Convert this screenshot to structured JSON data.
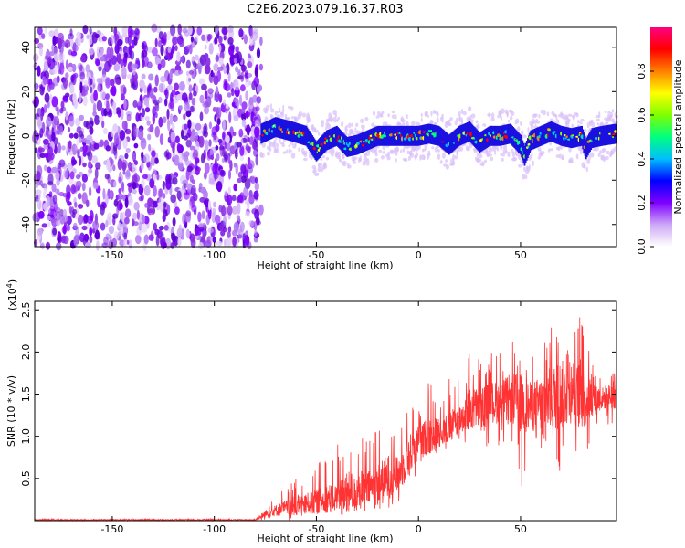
{
  "figure": {
    "title": "C2E6.2023.079.16.37.R03"
  },
  "chart_data": [
    {
      "type": "heatmap",
      "title": "",
      "xlabel": "Height of straight line (km)",
      "ylabel": "Frequency (Hz)",
      "xlim": [
        -188,
        97
      ],
      "ylim": [
        -50,
        49
      ],
      "x_ticks": [
        -150,
        -100,
        -50,
        0,
        50
      ],
      "y_ticks": [
        -40,
        -20,
        0,
        20,
        40
      ],
      "grid": false,
      "noise_region_x": [
        -188,
        -77
      ],
      "signal_centerline": {
        "x": [
          -77,
          -70,
          -62,
          -55,
          -50,
          -45,
          -40,
          -35,
          -30,
          -25,
          -20,
          -15,
          -10,
          -5,
          0,
          5,
          10,
          15,
          20,
          25,
          30,
          35,
          40,
          45,
          50,
          52,
          55,
          60,
          65,
          70,
          75,
          80,
          82,
          85,
          90,
          97
        ],
        "y": [
          1,
          4,
          2,
          0,
          -7,
          -2,
          0,
          -5,
          -4,
          -2,
          0,
          0,
          0,
          0,
          0,
          1,
          0,
          -4,
          0,
          2,
          -3,
          0,
          0,
          1,
          -4,
          -9,
          -2,
          0,
          2,
          0,
          -1,
          0,
          -6,
          -1,
          0,
          1
        ]
      },
      "colorbar": {
        "label": "Normalized spectral amplitude",
        "range": [
          0,
          1
        ],
        "ticks": [
          0.0,
          0.2,
          0.4,
          0.6,
          0.8
        ],
        "colors": [
          "#ffffff",
          "#cda8f7",
          "#7f00ff",
          "#0000ff",
          "#00bfff",
          "#00ff80",
          "#7fff00",
          "#ffff00",
          "#ff8000",
          "#ff0000",
          "#ff0080"
        ]
      }
    },
    {
      "type": "line",
      "title": "",
      "xlabel": "Height of straight line (km)",
      "ylabel": "SNR (10 * v/v)",
      "y_multiplier": "(x10",
      "y_multiplier_exp": "4",
      "y_multiplier_close": ")",
      "xlim": [
        -188,
        97
      ],
      "ylim": [
        0,
        2.6
      ],
      "x_ticks": [
        -150,
        -100,
        -50,
        0,
        50
      ],
      "y_ticks": [
        0.5,
        1.0,
        1.5,
        2.0,
        2.5
      ],
      "grid": false,
      "series": [
        {
          "color": "#ff3333",
          "x": [
            -188,
            -150,
            -100,
            -80,
            -75,
            -70,
            -65,
            -60,
            -55,
            -50,
            -45,
            -40,
            -35,
            -30,
            -25,
            -20,
            -15,
            -10,
            -5,
            0,
            5,
            10,
            15,
            20,
            25,
            30,
            35,
            40,
            45,
            50,
            55,
            60,
            65,
            70,
            75,
            80,
            85,
            90,
            97
          ],
          "mean": [
            0.01,
            0.01,
            0.01,
            0.01,
            0.08,
            0.12,
            0.15,
            0.18,
            0.2,
            0.22,
            0.26,
            0.28,
            0.3,
            0.35,
            0.38,
            0.42,
            0.5,
            0.55,
            0.75,
            0.95,
            1.0,
            1.05,
            1.1,
            1.2,
            1.3,
            1.35,
            1.4,
            1.4,
            1.45,
            1.4,
            1.35,
            1.38,
            1.45,
            1.5,
            1.45,
            1.5,
            1.45,
            1.45,
            1.5
          ],
          "max": [
            0.02,
            0.02,
            0.02,
            0.02,
            0.2,
            0.3,
            0.4,
            0.55,
            0.6,
            0.7,
            0.8,
            0.9,
            1.3,
            1.2,
            1.0,
            1.2,
            1.45,
            1.1,
            1.5,
            1.35,
            1.8,
            1.6,
            1.7,
            1.7,
            2.1,
            2.0,
            2.0,
            2.0,
            2.2,
            1.9,
            1.9,
            2.3,
            2.3,
            2.4,
            2.1,
            2.6,
            1.9,
            1.7,
            1.8
          ],
          "min": [
            0.0,
            0.0,
            0.0,
            0.0,
            0.0,
            0.0,
            0.0,
            0.0,
            0.05,
            0.05,
            0.05,
            0.08,
            0.08,
            0.1,
            0.1,
            0.1,
            0.15,
            0.2,
            0.3,
            0.6,
            0.75,
            0.8,
            0.85,
            0.9,
            0.9,
            0.9,
            0.85,
            0.9,
            0.9,
            0.3,
            0.6,
            0.8,
            0.6,
            0.5,
            0.8,
            0.6,
            0.9,
            1.1,
            1.0
          ]
        }
      ]
    }
  ]
}
